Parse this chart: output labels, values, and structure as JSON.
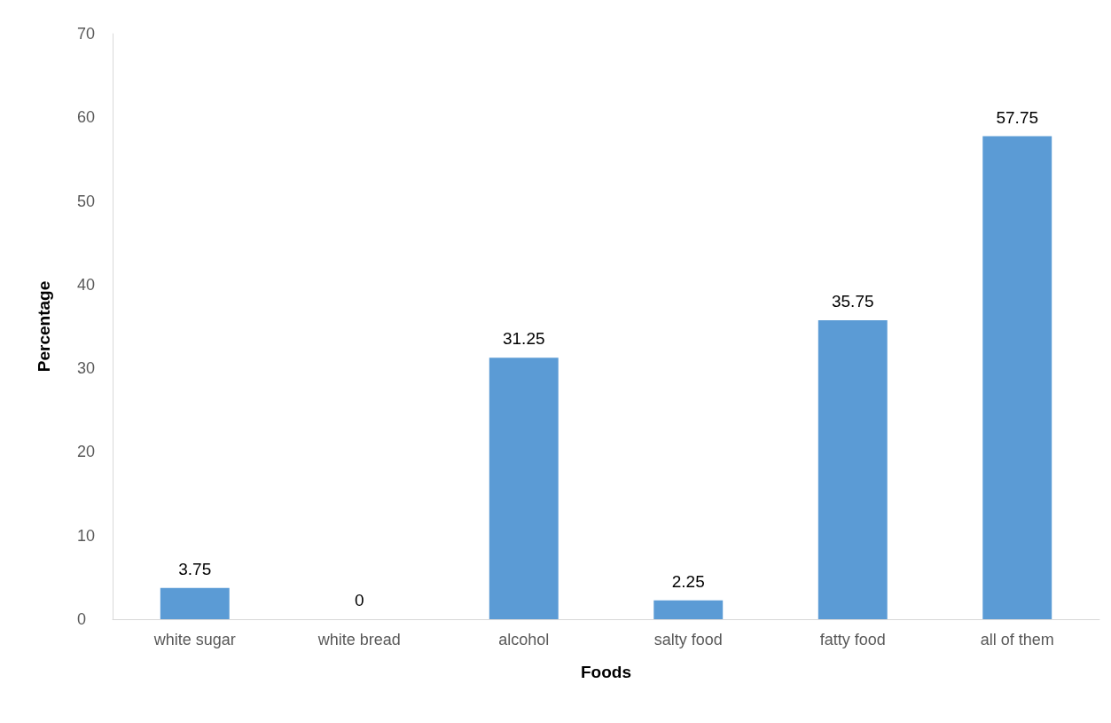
{
  "chart_data": {
    "type": "bar",
    "xlabel": "Foods",
    "ylabel": "Percentage",
    "categories": [
      "white sugar",
      "white bread",
      "alcohol",
      "salty food",
      "fatty food",
      "all of them"
    ],
    "values": [
      3.75,
      0,
      31.25,
      2.25,
      35.75,
      57.75
    ],
    "color": "#5b9bd5",
    "ylim": [
      0,
      70
    ],
    "yticks": [
      0,
      10,
      20,
      30,
      40,
      50,
      60,
      70
    ],
    "grid": false,
    "data_labels": true
  }
}
